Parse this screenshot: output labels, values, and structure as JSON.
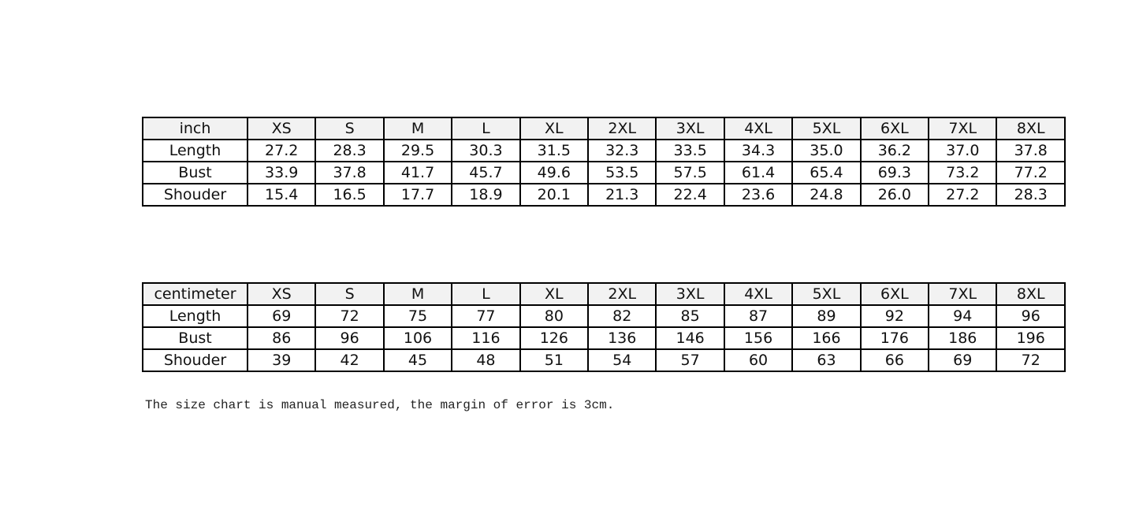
{
  "tables": [
    {
      "unit": "inch",
      "sizes": [
        "XS",
        "S",
        "M",
        "L",
        "XL",
        "2XL",
        "3XL",
        "4XL",
        "5XL",
        "6XL",
        "7XL",
        "8XL"
      ],
      "rows": [
        {
          "label": "Length",
          "values": [
            "27.2",
            "28.3",
            "29.5",
            "30.3",
            "31.5",
            "32.3",
            "33.5",
            "34.3",
            "35.0",
            "36.2",
            "37.0",
            "37.8"
          ]
        },
        {
          "label": "Bust",
          "values": [
            "33.9",
            "37.8",
            "41.7",
            "45.7",
            "49.6",
            "53.5",
            "57.5",
            "61.4",
            "65.4",
            "69.3",
            "73.2",
            "77.2"
          ]
        },
        {
          "label": "Shouder",
          "values": [
            "15.4",
            "16.5",
            "17.7",
            "18.9",
            "20.1",
            "21.3",
            "22.4",
            "23.6",
            "24.8",
            "26.0",
            "27.2",
            "28.3"
          ]
        }
      ]
    },
    {
      "unit": "centimeter",
      "sizes": [
        "XS",
        "S",
        "M",
        "L",
        "XL",
        "2XL",
        "3XL",
        "4XL",
        "5XL",
        "6XL",
        "7XL",
        "8XL"
      ],
      "rows": [
        {
          "label": "Length",
          "values": [
            "69",
            "72",
            "75",
            "77",
            "80",
            "82",
            "85",
            "87",
            "89",
            "92",
            "94",
            "96"
          ]
        },
        {
          "label": "Bust",
          "values": [
            "86",
            "96",
            "106",
            "116",
            "126",
            "136",
            "146",
            "156",
            "166",
            "176",
            "186",
            "196"
          ]
        },
        {
          "label": "Shouder",
          "values": [
            "39",
            "42",
            "45",
            "48",
            "51",
            "54",
            "57",
            "60",
            "63",
            "66",
            "69",
            "72"
          ]
        }
      ]
    }
  ],
  "note": "The size chart is manual measured, the margin of error is 3cm.",
  "colors": {
    "header_bg": "#f2f2f2",
    "border": "#000000"
  }
}
